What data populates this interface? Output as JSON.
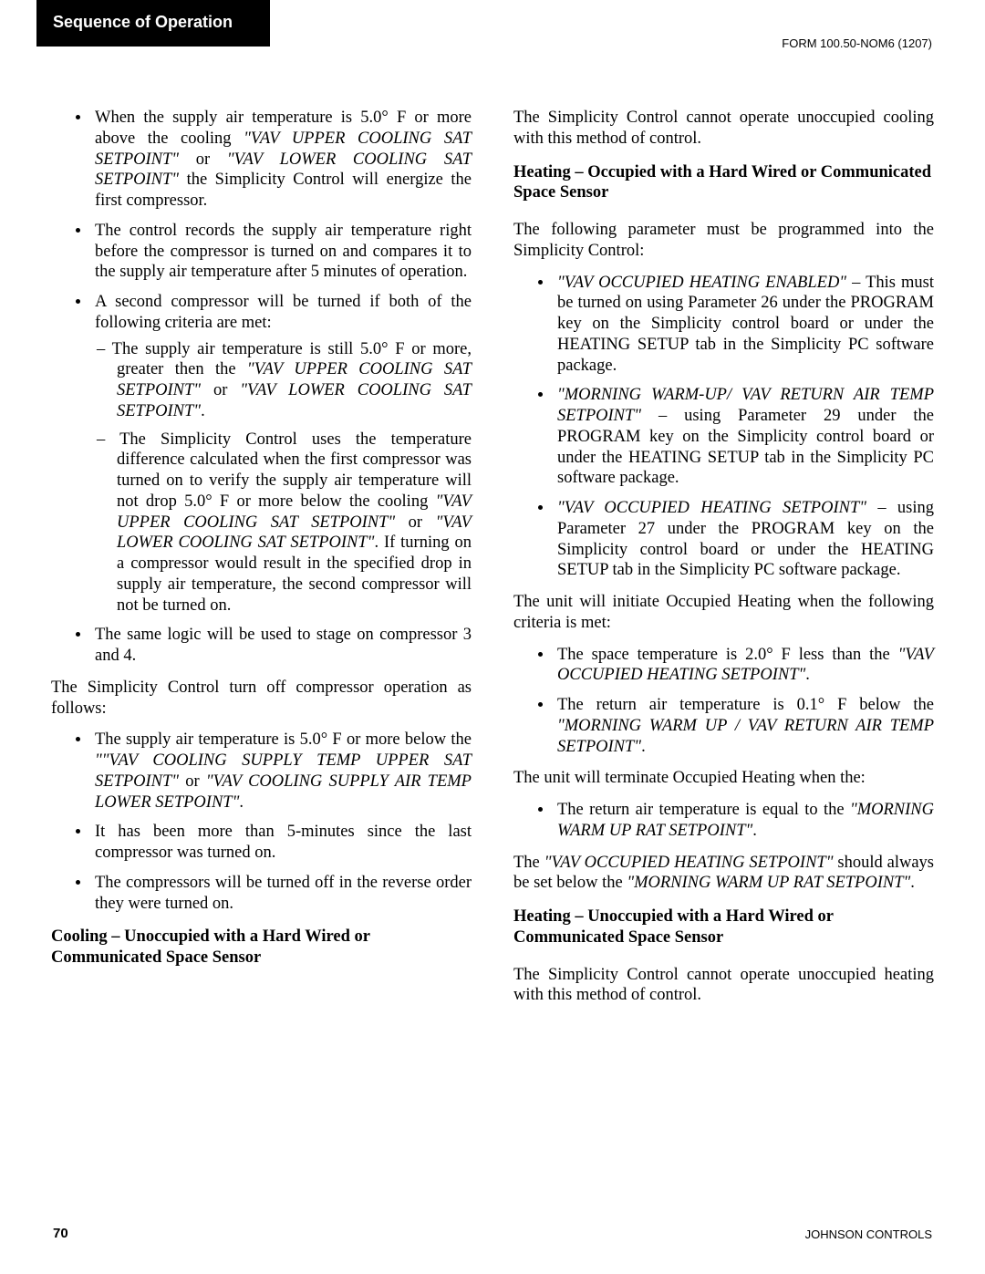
{
  "tab_title": "Sequence of Operation",
  "form_id": "FORM 100.50-NOM6 (1207)",
  "page_number": "70",
  "footer_brand": "JOHNSON CONTROLS",
  "setpoints": {
    "vav_upper_cooling_sat": "\"VAV UPPER COOLING SAT SETPOINT\"",
    "vav_lower_cooling_sat": "\"VAV LOWER COOLING SAT SETPOINT\"",
    "vav_upper_cooling_sat_short": "\"VAV UPPER COOLING SAT SETPOINT\"",
    "vav_lower_cooling_sat_short": "\"VAV LOWER COOLING SAT SETPOINT\"",
    "vav_cooling_supply_upper": "\"\"VAV COOLING SUPPLY TEMP UPPER SAT SETPOINT\"",
    "vav_cooling_supply_lower": "\"VAV COOLING SUPPLY AIR TEMP LOWER SETPOINT\"",
    "vav_occ_heating_enabled": "\"VAV OCCUPIED HEATING ENABLED\"",
    "morning_warmup_vav_rat": "\"MORNING WARM-UP/ VAV RETURN AIR TEMP SETPOINT\"",
    "vav_occ_heating_setpoint": "\"VAV OCCUPIED HEATING SETPOINT\"",
    "morning_warmup_vav_rat2": "\"MORNING WARM UP / VAV RETURN AIR TEMP SETPOINT\"",
    "morning_warmup_rat": "\"MORNING WARM UP RAT SETPOINT\""
  },
  "text": {
    "b1a": "When the supply air temperature is 5.0° F or more above the cooling ",
    "b1b": " or ",
    "b1c": " the Simplicity Control will energize the first compressor.",
    "b2": "The control records the supply air temperature right before the compressor is turned on and compares it to the supply air temperature after 5 minutes of operation.",
    "b3": "A second compressor will be turned if both of the following criteria are met:",
    "b3s1a": "The supply air temperature is still 5.0° F or more, greater then the ",
    "b3s1b": " or ",
    "b3s1c": ".",
    "b3s2a": "The Simplicity Control uses the temperature difference calculated when the first compressor was turned on to verify the supply air temperature will not drop 5.0° F or more below the cooling ",
    "b3s2b": " or ",
    "b3s2c": ".  If turning on a compressor would result in the specified drop in supply air temperature, the second compressor will not be turned on.",
    "b4": "The same logic will be used to stage on compressor 3 and 4.",
    "p_off_intro": "The Simplicity Control turn off compressor operation as follows:",
    "off1a": "The supply air temperature is 5.0° F or more below the ",
    "off1b": " or ",
    "off1c": ".",
    "off2": "It has been more than 5-minutes since the last compressor was turned on.",
    "off3": "The compressors will be turned off in the reverse order they were turned on.",
    "h_cool_unocc": "Cooling – Unoccupied with a Hard Wired or Communicated Space Sensor",
    "p_cool_unocc": "The Simplicity Control cannot operate unoccupied cooling with this method of control.",
    "h_heat_occ": "Heating – Occupied with a Hard Wired or Communicated Space Sensor",
    "p_heat_occ_intro": "The following parameter must be programmed into the Simplicity Control:",
    "hb1a": " – This must be turned on using Parameter 26 under the PROGRAM key on the Simplicity control board or under the HEATING SETUP tab in the Simplicity PC software package.",
    "hb2a": " – using Parameter 29 under the PROGRAM key on the Simplicity control board or under the HEATING SETUP tab in the Simplicity PC software package.",
    "hb3a": " – using Parameter 27 under the PROGRAM key on the Simplicity control board or under the HEATING SETUP tab in the Simplicity PC software package.",
    "p_init": "The unit will initiate Occupied Heating when the following criteria is met:",
    "init1a": "The space temperature is 2.0° F less than the ",
    "init1b": ".",
    "init2a": "The return air temperature is 0.1° F below the ",
    "init2b": ".",
    "p_term": "The unit will terminate Occupied Heating when the:",
    "term1a": "The return air temperature is equal to the ",
    "term1b": ".",
    "p_note_a": "The ",
    "p_note_b": " should always be set below the ",
    "p_note_c": ".",
    "h_heat_unocc": "Heating – Unoccupied with a Hard Wired or Communicated Space Sensor",
    "p_heat_unocc": "The Simplicity Control cannot operate unoccupied heating with this method of control."
  }
}
